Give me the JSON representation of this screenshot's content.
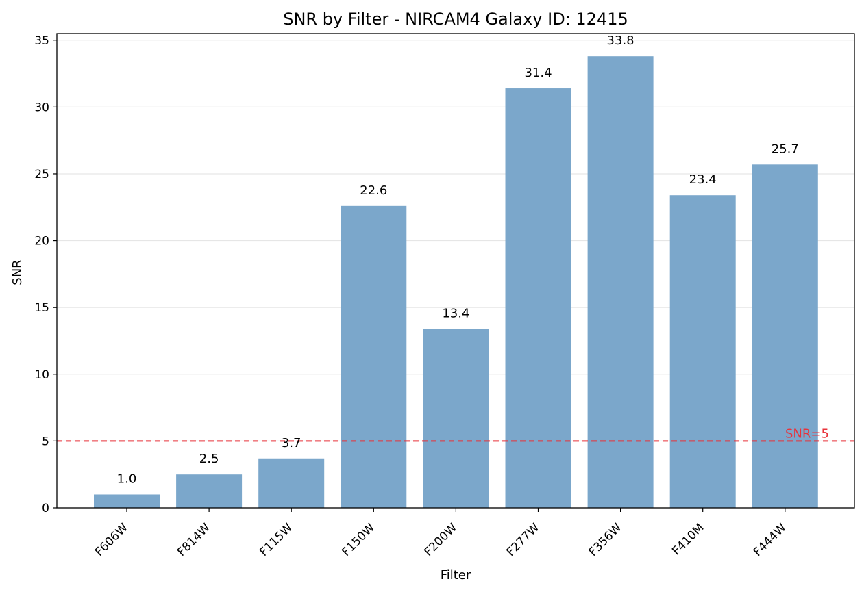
{
  "chart_data": {
    "type": "bar",
    "title": "SNR by Filter - NIRCAM4 Galaxy ID: 12415",
    "xlabel": "Filter",
    "ylabel": "SNR",
    "categories": [
      "F606W",
      "F814W",
      "F115W",
      "F150W",
      "F200W",
      "F277W",
      "F356W",
      "F410M",
      "F444W"
    ],
    "values": [
      1.0,
      2.5,
      3.7,
      22.6,
      13.4,
      31.4,
      33.8,
      23.4,
      25.7
    ],
    "value_labels": [
      "1.0",
      "2.5",
      "3.7",
      "22.6",
      "13.4",
      "31.4",
      "33.8",
      "23.4",
      "25.7"
    ],
    "ylim": [
      0,
      35.5
    ],
    "yticks": [
      0,
      5,
      10,
      15,
      20,
      25,
      30,
      35
    ],
    "grid": "horizontal",
    "bar_color": "#7ba7cb",
    "reference_line": {
      "value": 5,
      "label": "SNR=5",
      "color": "#e8333b",
      "style": "dashed"
    }
  }
}
